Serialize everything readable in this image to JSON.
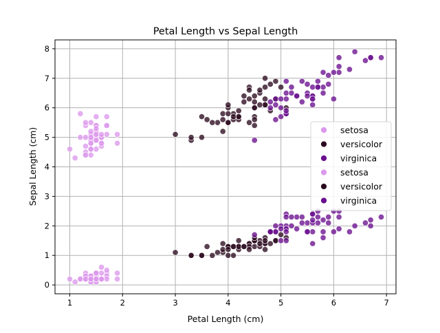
{
  "chart_data": {
    "type": "scatter",
    "title": "Petal Length vs Sepal Length",
    "xlabel": "Petal Length (cm)",
    "ylabel": "Sepal Length (cm)",
    "xlim": [
      0.72,
      7.18
    ],
    "ylim": [
      -0.3,
      8.3
    ],
    "xticks": [
      1,
      2,
      3,
      4,
      5,
      6,
      7
    ],
    "yticks": [
      0,
      1,
      2,
      3,
      4,
      5,
      6,
      7,
      8
    ],
    "grid": true,
    "legend_position": "center-right",
    "colors": {
      "setosa": "#dc98ec",
      "versicolor": "#2b0a1f",
      "virginica": "#6a0f8e"
    },
    "legend": [
      {
        "label": "setosa",
        "color": "#dc98ec"
      },
      {
        "label": "versicolor",
        "color": "#2b0a1f"
      },
      {
        "label": "virginica",
        "color": "#6a0f8e"
      },
      {
        "label": "setosa",
        "color": "#dc98ec"
      },
      {
        "label": "versicolor",
        "color": "#2b0a1f"
      },
      {
        "label": "virginica",
        "color": "#6a0f8e"
      }
    ],
    "series": [
      {
        "name": "setosa",
        "color": "#dc98ec",
        "points": [
          [
            1.4,
            5.1
          ],
          [
            1.4,
            4.9
          ],
          [
            1.3,
            4.7
          ],
          [
            1.5,
            4.6
          ],
          [
            1.4,
            5.0
          ],
          [
            1.7,
            5.4
          ],
          [
            1.4,
            4.6
          ],
          [
            1.5,
            5.0
          ],
          [
            1.4,
            4.4
          ],
          [
            1.5,
            4.9
          ],
          [
            1.5,
            5.4
          ],
          [
            1.6,
            4.8
          ],
          [
            1.4,
            4.8
          ],
          [
            1.1,
            4.3
          ],
          [
            1.2,
            5.8
          ],
          [
            1.5,
            5.7
          ],
          [
            1.3,
            5.4
          ],
          [
            1.4,
            5.1
          ],
          [
            1.7,
            5.7
          ],
          [
            1.5,
            5.1
          ],
          [
            1.7,
            5.4
          ],
          [
            1.5,
            5.1
          ],
          [
            1.0,
            4.6
          ],
          [
            1.7,
            5.1
          ],
          [
            1.9,
            4.8
          ],
          [
            1.6,
            5.0
          ],
          [
            1.6,
            5.0
          ],
          [
            1.5,
            5.2
          ],
          [
            1.4,
            5.2
          ],
          [
            1.6,
            4.7
          ],
          [
            1.6,
            4.8
          ],
          [
            1.5,
            5.4
          ],
          [
            1.5,
            5.2
          ],
          [
            1.4,
            5.5
          ],
          [
            1.5,
            4.9
          ],
          [
            1.2,
            5.0
          ],
          [
            1.3,
            5.5
          ],
          [
            1.4,
            4.9
          ],
          [
            1.3,
            4.4
          ],
          [
            1.5,
            5.1
          ],
          [
            1.3,
            5.0
          ],
          [
            1.3,
            4.5
          ],
          [
            1.3,
            4.4
          ],
          [
            1.6,
            5.0
          ],
          [
            1.9,
            5.1
          ],
          [
            1.4,
            4.8
          ],
          [
            1.6,
            5.1
          ],
          [
            1.4,
            4.6
          ],
          [
            1.5,
            5.3
          ],
          [
            1.4,
            5.0
          ]
        ]
      },
      {
        "name": "versicolor",
        "color": "#2b0a1f",
        "points": [
          [
            4.7,
            7.0
          ],
          [
            4.5,
            6.4
          ],
          [
            4.9,
            6.9
          ],
          [
            4.0,
            5.5
          ],
          [
            4.6,
            6.5
          ],
          [
            4.5,
            5.7
          ],
          [
            4.7,
            6.3
          ],
          [
            3.3,
            4.9
          ],
          [
            4.6,
            6.6
          ],
          [
            3.9,
            5.2
          ],
          [
            3.5,
            5.0
          ],
          [
            4.2,
            5.9
          ],
          [
            4.0,
            6.0
          ],
          [
            4.7,
            6.1
          ],
          [
            3.6,
            5.6
          ],
          [
            4.4,
            6.7
          ],
          [
            4.5,
            5.6
          ],
          [
            4.1,
            5.8
          ],
          [
            4.5,
            6.2
          ],
          [
            3.9,
            5.6
          ],
          [
            4.8,
            5.9
          ],
          [
            4.0,
            6.1
          ],
          [
            4.9,
            6.3
          ],
          [
            4.7,
            6.1
          ],
          [
            4.3,
            6.4
          ],
          [
            4.4,
            6.6
          ],
          [
            4.8,
            6.8
          ],
          [
            5.0,
            6.7
          ],
          [
            4.5,
            6.0
          ],
          [
            3.5,
            5.7
          ],
          [
            3.8,
            5.5
          ],
          [
            3.7,
            5.5
          ],
          [
            3.9,
            5.8
          ],
          [
            5.1,
            6.0
          ],
          [
            4.5,
            5.4
          ],
          [
            4.5,
            6.0
          ],
          [
            4.7,
            6.7
          ],
          [
            4.4,
            6.3
          ],
          [
            4.1,
            5.6
          ],
          [
            4.0,
            5.5
          ],
          [
            4.4,
            5.5
          ],
          [
            4.6,
            6.1
          ],
          [
            4.0,
            5.8
          ],
          [
            3.3,
            5.0
          ],
          [
            4.2,
            5.6
          ],
          [
            4.2,
            5.7
          ],
          [
            4.2,
            5.7
          ],
          [
            4.3,
            6.2
          ],
          [
            3.0,
            5.1
          ],
          [
            4.1,
            5.7
          ]
        ]
      },
      {
        "name": "virginica",
        "color": "#6a0f8e",
        "points": [
          [
            6.0,
            6.3
          ],
          [
            5.1,
            5.8
          ],
          [
            5.9,
            7.1
          ],
          [
            5.6,
            6.3
          ],
          [
            5.8,
            6.5
          ],
          [
            6.6,
            7.6
          ],
          [
            4.5,
            4.9
          ],
          [
            6.3,
            7.3
          ],
          [
            5.8,
            6.7
          ],
          [
            6.1,
            7.2
          ],
          [
            5.1,
            6.5
          ],
          [
            5.3,
            6.4
          ],
          [
            5.5,
            6.8
          ],
          [
            5.0,
            5.7
          ],
          [
            5.1,
            5.8
          ],
          [
            5.3,
            6.4
          ],
          [
            5.5,
            6.5
          ],
          [
            6.7,
            7.7
          ],
          [
            6.9,
            7.7
          ],
          [
            5.0,
            6.0
          ],
          [
            5.7,
            6.9
          ],
          [
            4.9,
            5.6
          ],
          [
            6.7,
            7.7
          ],
          [
            4.9,
            6.3
          ],
          [
            5.7,
            6.7
          ],
          [
            6.0,
            7.2
          ],
          [
            4.8,
            6.2
          ],
          [
            4.9,
            6.1
          ],
          [
            5.6,
            6.4
          ],
          [
            5.8,
            7.2
          ],
          [
            6.1,
            7.4
          ],
          [
            6.4,
            7.9
          ],
          [
            5.6,
            6.4
          ],
          [
            5.1,
            6.3
          ],
          [
            5.6,
            6.1
          ],
          [
            6.1,
            7.7
          ],
          [
            5.6,
            6.3
          ],
          [
            5.5,
            6.4
          ],
          [
            4.8,
            6.0
          ],
          [
            5.4,
            6.9
          ],
          [
            5.6,
            6.7
          ],
          [
            5.1,
            6.9
          ],
          [
            5.1,
            5.8
          ],
          [
            5.9,
            6.8
          ],
          [
            5.7,
            6.7
          ],
          [
            5.2,
            6.7
          ],
          [
            5.0,
            6.3
          ],
          [
            5.2,
            6.5
          ],
          [
            5.4,
            6.2
          ],
          [
            5.1,
            5.9
          ]
        ]
      },
      {
        "name": "setosa",
        "color": "#dc98ec",
        "points": [
          [
            1.4,
            0.2
          ],
          [
            1.4,
            0.2
          ],
          [
            1.3,
            0.2
          ],
          [
            1.5,
            0.2
          ],
          [
            1.4,
            0.2
          ],
          [
            1.7,
            0.4
          ],
          [
            1.4,
            0.3
          ],
          [
            1.5,
            0.2
          ],
          [
            1.4,
            0.2
          ],
          [
            1.5,
            0.1
          ],
          [
            1.5,
            0.2
          ],
          [
            1.6,
            0.2
          ],
          [
            1.4,
            0.1
          ],
          [
            1.1,
            0.1
          ],
          [
            1.2,
            0.2
          ],
          [
            1.5,
            0.4
          ],
          [
            1.3,
            0.4
          ],
          [
            1.4,
            0.3
          ],
          [
            1.7,
            0.3
          ],
          [
            1.5,
            0.3
          ],
          [
            1.7,
            0.2
          ],
          [
            1.5,
            0.4
          ],
          [
            1.0,
            0.2
          ],
          [
            1.7,
            0.5
          ],
          [
            1.9,
            0.2
          ],
          [
            1.6,
            0.2
          ],
          [
            1.6,
            0.4
          ],
          [
            1.5,
            0.2
          ],
          [
            1.4,
            0.2
          ],
          [
            1.6,
            0.2
          ],
          [
            1.6,
            0.2
          ],
          [
            1.5,
            0.4
          ],
          [
            1.5,
            0.1
          ],
          [
            1.4,
            0.2
          ],
          [
            1.5,
            0.2
          ],
          [
            1.2,
            0.2
          ],
          [
            1.3,
            0.2
          ],
          [
            1.4,
            0.1
          ],
          [
            1.3,
            0.2
          ],
          [
            1.5,
            0.2
          ],
          [
            1.3,
            0.3
          ],
          [
            1.3,
            0.3
          ],
          [
            1.3,
            0.2
          ],
          [
            1.6,
            0.6
          ],
          [
            1.9,
            0.4
          ],
          [
            1.4,
            0.3
          ],
          [
            1.6,
            0.2
          ],
          [
            1.4,
            0.2
          ],
          [
            1.5,
            0.2
          ],
          [
            1.4,
            0.2
          ]
        ]
      },
      {
        "name": "versicolor",
        "color": "#2b0a1f",
        "points": [
          [
            4.7,
            1.4
          ],
          [
            4.5,
            1.5
          ],
          [
            4.9,
            1.5
          ],
          [
            4.0,
            1.3
          ],
          [
            4.6,
            1.5
          ],
          [
            4.5,
            1.3
          ],
          [
            4.7,
            1.6
          ],
          [
            3.3,
            1.0
          ],
          [
            4.6,
            1.3
          ],
          [
            3.9,
            1.4
          ],
          [
            3.5,
            1.0
          ],
          [
            4.2,
            1.5
          ],
          [
            4.0,
            1.0
          ],
          [
            4.7,
            1.4
          ],
          [
            3.6,
            1.3
          ],
          [
            4.4,
            1.4
          ],
          [
            4.5,
            1.5
          ],
          [
            4.1,
            1.0
          ],
          [
            4.5,
            1.5
          ],
          [
            3.9,
            1.1
          ],
          [
            4.8,
            1.8
          ],
          [
            4.0,
            1.3
          ],
          [
            4.9,
            1.5
          ],
          [
            4.7,
            1.2
          ],
          [
            4.3,
            1.3
          ],
          [
            4.4,
            1.4
          ],
          [
            4.8,
            1.4
          ],
          [
            5.0,
            1.7
          ],
          [
            4.5,
            1.5
          ],
          [
            3.5,
            1.0
          ],
          [
            3.8,
            1.1
          ],
          [
            3.7,
            1.0
          ],
          [
            3.9,
            1.2
          ],
          [
            5.1,
            1.6
          ],
          [
            4.5,
            1.5
          ],
          [
            4.5,
            1.6
          ],
          [
            4.7,
            1.5
          ],
          [
            4.4,
            1.3
          ],
          [
            4.1,
            1.3
          ],
          [
            4.0,
            1.3
          ],
          [
            4.4,
            1.2
          ],
          [
            4.6,
            1.4
          ],
          [
            4.0,
            1.2
          ],
          [
            3.3,
            1.0
          ],
          [
            4.2,
            1.3
          ],
          [
            4.2,
            1.2
          ],
          [
            4.2,
            1.3
          ],
          [
            4.3,
            1.3
          ],
          [
            3.0,
            1.1
          ],
          [
            4.1,
            1.3
          ]
        ]
      },
      {
        "name": "virginica",
        "color": "#6a0f8e",
        "points": [
          [
            6.0,
            2.5
          ],
          [
            5.1,
            1.9
          ],
          [
            5.9,
            2.1
          ],
          [
            5.6,
            1.8
          ],
          [
            5.8,
            2.2
          ],
          [
            6.6,
            2.1
          ],
          [
            4.5,
            1.7
          ],
          [
            6.3,
            1.8
          ],
          [
            5.8,
            1.8
          ],
          [
            6.1,
            2.5
          ],
          [
            5.1,
            2.0
          ],
          [
            5.3,
            1.9
          ],
          [
            5.5,
            2.1
          ],
          [
            5.0,
            2.0
          ],
          [
            5.1,
            2.4
          ],
          [
            5.3,
            2.3
          ],
          [
            5.5,
            1.8
          ],
          [
            6.7,
            2.2
          ],
          [
            6.9,
            2.3
          ],
          [
            5.0,
            1.5
          ],
          [
            5.7,
            2.3
          ],
          [
            4.9,
            2.0
          ],
          [
            6.7,
            2.0
          ],
          [
            4.9,
            1.8
          ],
          [
            5.7,
            2.1
          ],
          [
            6.0,
            1.8
          ],
          [
            4.8,
            1.8
          ],
          [
            4.9,
            1.8
          ],
          [
            5.6,
            2.1
          ],
          [
            5.8,
            1.6
          ],
          [
            6.1,
            1.9
          ],
          [
            6.4,
            2.0
          ],
          [
            5.6,
            2.2
          ],
          [
            5.1,
            1.5
          ],
          [
            5.6,
            1.4
          ],
          [
            6.1,
            2.3
          ],
          [
            5.6,
            2.4
          ],
          [
            5.5,
            1.8
          ],
          [
            4.8,
            1.8
          ],
          [
            5.4,
            2.1
          ],
          [
            5.6,
            2.4
          ],
          [
            5.1,
            2.3
          ],
          [
            5.1,
            1.9
          ],
          [
            5.9,
            2.3
          ],
          [
            5.7,
            2.5
          ],
          [
            5.2,
            2.3
          ],
          [
            5.0,
            1.9
          ],
          [
            5.2,
            2.0
          ],
          [
            5.4,
            2.3
          ],
          [
            5.1,
            1.8
          ]
        ]
      }
    ]
  }
}
